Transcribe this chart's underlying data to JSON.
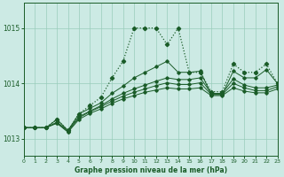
{
  "title": "Graphe pression niveau de la mer (hPa)",
  "background_color": "#cceae4",
  "grid_color": "#99ccbb",
  "line_color": "#1a5c28",
  "x_min": 0,
  "x_max": 23,
  "y_min": 1012.7,
  "y_max": 1015.45,
  "y_ticks": [
    1013,
    1014,
    1015
  ],
  "x_ticks": [
    0,
    1,
    2,
    3,
    4,
    5,
    6,
    7,
    8,
    9,
    10,
    11,
    12,
    13,
    14,
    15,
    16,
    17,
    18,
    19,
    20,
    21,
    22,
    23
  ],
  "series": [
    {
      "points": [
        [
          0,
          1013.2
        ],
        [
          1,
          1013.2
        ],
        [
          2,
          1013.2
        ],
        [
          3,
          1013.35
        ],
        [
          4,
          1013.15
        ],
        [
          5,
          1013.45
        ],
        [
          6,
          1013.6
        ],
        [
          7,
          1013.75
        ],
        [
          8,
          1014.1
        ],
        [
          9,
          1014.4
        ],
        [
          10,
          1015.0
        ],
        [
          11,
          1015.0
        ],
        [
          12,
          1015.0
        ],
        [
          13,
          1014.7
        ],
        [
          14,
          1015.0
        ],
        [
          15,
          1014.2
        ],
        [
          16,
          1014.2
        ],
        [
          17,
          1013.85
        ],
        [
          18,
          1013.85
        ],
        [
          19,
          1014.35
        ],
        [
          20,
          1014.2
        ],
        [
          21,
          1014.2
        ],
        [
          22,
          1014.35
        ],
        [
          23,
          1014.0
        ]
      ],
      "linewidth": 1.0,
      "linestyle": "dotted",
      "marker": "D",
      "markersize": 2.5
    },
    {
      "points": [
        [
          0,
          1013.2
        ],
        [
          1,
          1013.2
        ],
        [
          3,
          1013.35
        ],
        [
          4,
          1013.15
        ],
        [
          5,
          1013.45
        ],
        [
          10,
          1013.75
        ],
        [
          14,
          1014.15
        ],
        [
          15,
          1014.15
        ],
        [
          16,
          1014.2
        ],
        [
          17,
          1014.2
        ],
        [
          19,
          1014.35
        ],
        [
          20,
          1014.15
        ],
        [
          21,
          1014.15
        ],
        [
          22,
          1014.35
        ],
        [
          23,
          1014.0
        ]
      ],
      "linewidth": 0.8,
      "linestyle": "solid",
      "marker": "D",
      "markersize": 2.0
    },
    {
      "points": [
        [
          0,
          1013.2
        ],
        [
          5,
          1013.45
        ],
        [
          10,
          1013.72
        ],
        [
          15,
          1013.97
        ],
        [
          17,
          1013.82
        ],
        [
          19,
          1014.02
        ],
        [
          23,
          1013.97
        ]
      ],
      "linewidth": 0.8,
      "linestyle": "solid",
      "marker": "D",
      "markersize": 2.0
    },
    {
      "points": [
        [
          0,
          1013.2
        ],
        [
          5,
          1013.4
        ],
        [
          10,
          1013.65
        ],
        [
          15,
          1013.88
        ],
        [
          17,
          1013.78
        ],
        [
          19,
          1013.9
        ],
        [
          23,
          1013.93
        ]
      ],
      "linewidth": 0.8,
      "linestyle": "solid",
      "marker": "D",
      "markersize": 2.0
    },
    {
      "points": [
        [
          0,
          1013.2
        ],
        [
          5,
          1013.42
        ],
        [
          10,
          1013.68
        ],
        [
          15,
          1013.92
        ],
        [
          17,
          1013.8
        ],
        [
          19,
          1013.95
        ],
        [
          23,
          1013.95
        ]
      ],
      "linewidth": 0.8,
      "linestyle": "solid",
      "marker": "D",
      "markersize": 2.0
    }
  ],
  "full_series": [
    [
      1013.2,
      1013.2,
      1013.2,
      1013.35,
      1013.15,
      1013.45,
      1013.6,
      1013.75,
      1014.1,
      1014.4,
      1015.0,
      1015.0,
      1015.0,
      1014.7,
      1015.0,
      1014.2,
      1014.2,
      1013.85,
      1013.85,
      1014.35,
      1014.2,
      1014.2,
      1014.35,
      1014.0
    ],
    [
      1013.2,
      1013.2,
      1013.2,
      1013.35,
      1013.15,
      1013.45,
      1013.55,
      1013.65,
      1013.82,
      1013.95,
      1014.1,
      1014.2,
      1014.3,
      1014.4,
      1014.2,
      1014.2,
      1014.22,
      1013.8,
      1013.8,
      1014.22,
      1014.1,
      1014.1,
      1014.25,
      1014.0
    ],
    [
      1013.2,
      1013.2,
      1013.2,
      1013.3,
      1013.15,
      1013.4,
      1013.5,
      1013.6,
      1013.72,
      1013.82,
      1013.9,
      1013.97,
      1014.04,
      1014.1,
      1014.07,
      1014.07,
      1014.1,
      1013.82,
      1013.82,
      1014.08,
      1013.97,
      1013.92,
      1013.92,
      1013.97
    ],
    [
      1013.2,
      1013.2,
      1013.2,
      1013.28,
      1013.12,
      1013.35,
      1013.46,
      1013.54,
      1013.64,
      1013.72,
      1013.78,
      1013.84,
      1013.88,
      1013.92,
      1013.9,
      1013.9,
      1013.92,
      1013.78,
      1013.78,
      1013.92,
      1013.86,
      1013.83,
      1013.83,
      1013.9
    ],
    [
      1013.2,
      1013.2,
      1013.2,
      1013.29,
      1013.13,
      1013.38,
      1013.49,
      1013.58,
      1013.68,
      1013.77,
      1013.84,
      1013.9,
      1013.96,
      1014.01,
      1013.98,
      1013.98,
      1014.01,
      1013.8,
      1013.8,
      1014.0,
      1013.92,
      1013.87,
      1013.87,
      1013.94
    ]
  ]
}
